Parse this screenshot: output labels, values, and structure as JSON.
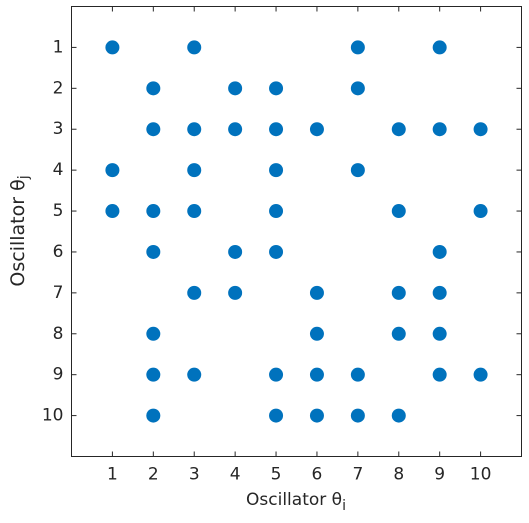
{
  "chart_data": {
    "type": "scatter",
    "xlabel": "Oscillator θ",
    "xlabel_sub": "i",
    "ylabel": "Oscillator θ",
    "ylabel_sub": "j",
    "x": [
      1,
      3,
      7,
      9,
      2,
      4,
      5,
      7,
      2,
      3,
      4,
      5,
      6,
      8,
      9,
      10,
      1,
      3,
      5,
      7,
      1,
      2,
      3,
      5,
      8,
      10,
      2,
      4,
      5,
      9,
      3,
      4,
      6,
      8,
      9,
      2,
      6,
      8,
      9,
      2,
      3,
      5,
      6,
      7,
      9,
      10,
      2,
      5,
      6,
      7,
      8
    ],
    "y": [
      1,
      1,
      1,
      1,
      2,
      2,
      2,
      2,
      3,
      3,
      3,
      3,
      3,
      3,
      3,
      3,
      4,
      4,
      4,
      4,
      5,
      5,
      5,
      5,
      5,
      5,
      6,
      6,
      6,
      6,
      7,
      7,
      7,
      7,
      7,
      8,
      8,
      8,
      8,
      9,
      9,
      9,
      9,
      9,
      9,
      9,
      10,
      10,
      10,
      10,
      10
    ],
    "color": "#0072bd",
    "xlim": [
      0,
      11
    ],
    "xticks": [
      1,
      2,
      3,
      4,
      5,
      6,
      7,
      8,
      9,
      10
    ],
    "ylim": [
      0,
      11
    ],
    "yticks": [
      1,
      2,
      3,
      4,
      5,
      6,
      7,
      8,
      9,
      10
    ],
    "y_reversed": true
  }
}
